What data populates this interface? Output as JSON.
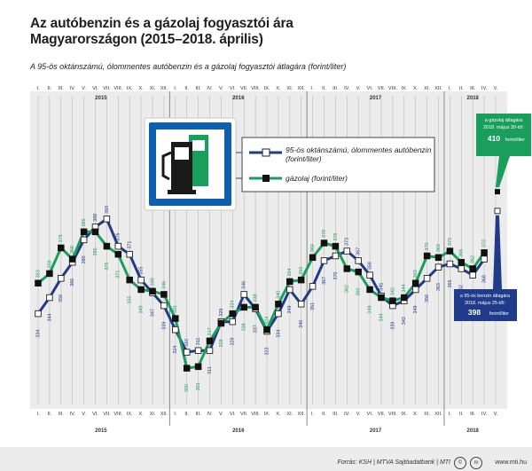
{
  "title": "Az autóbenzin és a gázolaj fogyasztói ára Magyarországon (2015–2018. április)",
  "subtitle": "A 95-ös oktánszámú, ólommentes autóbenzin és a gázolaj fogyasztói átlagára (forint/liter)",
  "icon": "fuel-pump-icon",
  "colors": {
    "petrol": "#1f3b8a",
    "diesel": "#1a9e5c",
    "grid": "#bcbcbc",
    "plot_bg": "#ececec"
  },
  "callouts": {
    "diesel": {
      "line1": "a gázolaj átlagára",
      "line2": "2018. május 30-tól:",
      "value": "410",
      "unit": "forint/liter"
    },
    "petrol": {
      "line1": "a 95-ös benzin átlagára",
      "line2": "2018. május 25-től:",
      "value": "398",
      "unit": "forint/liter"
    }
  },
  "footer": {
    "source": "Forrás: KSH | MTVA Sajtóadatbank | MTI",
    "site": "www.mti.hu"
  },
  "chart_data": {
    "type": "line",
    "title": "Az autóbenzin és a gázolaj fogyasztói ára Magyarországon (2015–2018. április)",
    "ylabel": "",
    "ylim": [
      295,
      400
    ],
    "years": [
      "2015",
      "2016",
      "2017",
      "2018"
    ],
    "month_labels": [
      "I.",
      "II.",
      "III.",
      "IV.",
      "V.",
      "VI.",
      "VII.",
      "VIII.",
      "IX.",
      "X.",
      "XI.",
      "XII.",
      "I.",
      "II.",
      "III.",
      "IV.",
      "V.",
      "VI.",
      "VII.",
      "VIII.",
      "IX.",
      "X.",
      "XI.",
      "XII.",
      "I.",
      "II.",
      "III.",
      "IV.",
      "V.",
      "VI.",
      "VII.",
      "VIII.",
      "IX.",
      "X.",
      "XI.",
      "XII.",
      "I.",
      "II.",
      "III.",
      "IV.",
      "V."
    ],
    "legend": {
      "petrol": "95-ös oktánszámú, ólommentes autóbenzin (forint/liter)",
      "diesel": "gázolaj (forint/liter)"
    },
    "series": [
      {
        "name": "95-ös oktánszámú, ólommentes autóbenzin (forint/liter)",
        "key": "petrol",
        "values": [
          334,
          344,
          356,
          366,
          380,
          388,
          393,
          376,
          371,
          355,
          347,
          339,
          324,
          310,
          311,
          311,
          329,
          329,
          346,
          337,
          323,
          334,
          349,
          340,
          351,
          367,
          370,
          373,
          367,
          358,
          345,
          339,
          342,
          349,
          356,
          363,
          365,
          362,
          358,
          368
        ]
      },
      {
        "name": "gázolaj (forint/liter)",
        "key": "diesel",
        "values": [
          353,
          359,
          375,
          368,
          385,
          385,
          376,
          371,
          355,
          349,
          348,
          346,
          331,
          300,
          301,
          317,
          328,
          334,
          338,
          338,
          324,
          340,
          354,
          355,
          369,
          378,
          376,
          362,
          360,
          349,
          344,
          342,
          344,
          353,
          370,
          369,
          373,
          366,
          362,
          372
        ]
      }
    ],
    "after_end": {
      "petrol": 398,
      "diesel": 410
    }
  }
}
